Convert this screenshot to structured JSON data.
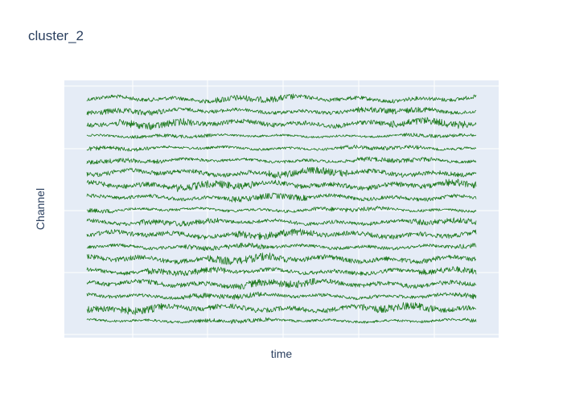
{
  "chart_data": {
    "type": "line",
    "title": "cluster_2",
    "xlabel": "time",
    "ylabel": "Channel",
    "grid": true,
    "legend": "none",
    "x_tick_labels_visible": false,
    "y_tick_labels_visible": false,
    "channel_count": 19,
    "series_color": "#1f7a1f",
    "plot_background": "#e5ecf6",
    "grid_color": "#ffffff"
  }
}
